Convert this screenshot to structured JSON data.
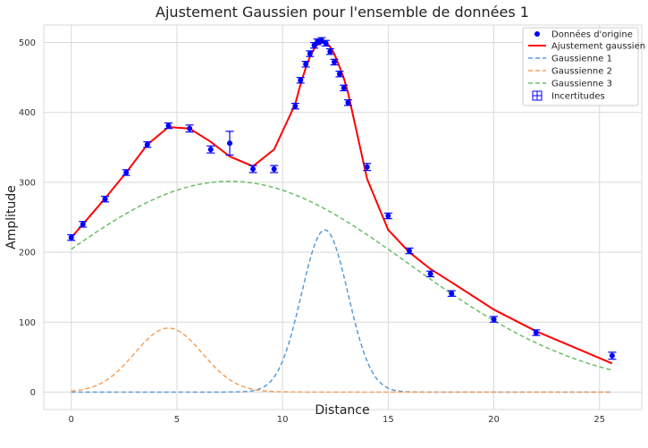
{
  "chart_data": {
    "type": "scatter",
    "title": "Ajustement Gaussien pour l'ensemble de données 1",
    "xlabel": "Distance",
    "ylabel": "Amplitude",
    "xlim": [
      -1.3,
      27
    ],
    "ylim": [
      -25,
      525
    ],
    "xticks": [
      0,
      5,
      10,
      15,
      20,
      25
    ],
    "yticks": [
      0,
      100,
      200,
      300,
      400,
      500
    ],
    "grid": true,
    "legend_position": "top-right",
    "colors": {
      "data": "#0000ff",
      "fit": "#ff0000",
      "gauss1": "#5b9bd5",
      "gauss2": "#f5a05a",
      "gauss3": "#6abf69",
      "grid": "#d9d9d9"
    },
    "legend": [
      {
        "label": "Données d'origine",
        "kind": "point"
      },
      {
        "label": "Ajustement gaussien",
        "kind": "solid"
      },
      {
        "label": "Gaussienne 1",
        "kind": "dash1"
      },
      {
        "label": "Gaussienne 2",
        "kind": "dash2"
      },
      {
        "label": "Gaussienne 3",
        "kind": "dash3"
      },
      {
        "label": "Incertitudes",
        "kind": "errbox"
      }
    ],
    "data_points": [
      {
        "x": 0,
        "y": 221,
        "err": 4
      },
      {
        "x": 0.55,
        "y": 240,
        "err": 4
      },
      {
        "x": 1.6,
        "y": 276,
        "err": 4
      },
      {
        "x": 2.6,
        "y": 314,
        "err": 4
      },
      {
        "x": 3.6,
        "y": 354,
        "err": 4
      },
      {
        "x": 4.6,
        "y": 381,
        "err": 4
      },
      {
        "x": 5.6,
        "y": 377,
        "err": 5
      },
      {
        "x": 6.6,
        "y": 347,
        "err": 5
      },
      {
        "x": 7.5,
        "y": 356,
        "err": 17
      },
      {
        "x": 8.6,
        "y": 319,
        "err": 5
      },
      {
        "x": 9.6,
        "y": 319,
        "err": 5
      },
      {
        "x": 10.6,
        "y": 409,
        "err": 4
      },
      {
        "x": 10.85,
        "y": 446,
        "err": 4
      },
      {
        "x": 11.1,
        "y": 469,
        "err": 4
      },
      {
        "x": 11.3,
        "y": 484,
        "err": 4
      },
      {
        "x": 11.5,
        "y": 496,
        "err": 4
      },
      {
        "x": 11.65,
        "y": 501,
        "err": 4
      },
      {
        "x": 11.85,
        "y": 503,
        "err": 4
      },
      {
        "x": 12.05,
        "y": 499,
        "err": 4
      },
      {
        "x": 12.25,
        "y": 487,
        "err": 4
      },
      {
        "x": 12.45,
        "y": 472,
        "err": 4
      },
      {
        "x": 12.7,
        "y": 455,
        "err": 4
      },
      {
        "x": 12.9,
        "y": 435,
        "err": 4
      },
      {
        "x": 13.1,
        "y": 414,
        "err": 4
      },
      {
        "x": 14,
        "y": 322,
        "err": 5
      },
      {
        "x": 15,
        "y": 252,
        "err": 4
      },
      {
        "x": 16,
        "y": 202,
        "err": 4
      },
      {
        "x": 17,
        "y": 169,
        "err": 4
      },
      {
        "x": 18,
        "y": 141,
        "err": 4
      },
      {
        "x": 20,
        "y": 104,
        "err": 4
      },
      {
        "x": 22,
        "y": 85,
        "err": 4
      },
      {
        "x": 25.6,
        "y": 52,
        "err": 5
      }
    ],
    "fit_curve": {
      "x": [
        0,
        0.55,
        1.6,
        2.6,
        3.6,
        4.6,
        5.6,
        6.6,
        7.5,
        8.6,
        9.6,
        10.6,
        10.85,
        11.1,
        11.3,
        11.5,
        11.65,
        11.85,
        12.05,
        12.25,
        12.45,
        12.7,
        12.9,
        13.1,
        14,
        15,
        16,
        17,
        18,
        20,
        22,
        25.6
      ],
      "y": [
        221,
        240,
        277,
        314,
        354,
        379,
        377,
        358,
        337,
        323,
        347,
        412,
        440,
        464,
        480,
        491,
        497,
        500,
        500,
        494,
        484,
        465,
        449,
        428,
        305,
        232,
        200,
        176,
        157,
        118,
        87,
        41
      ]
    },
    "series": [
      {
        "name": "Gaussienne 1",
        "amplitude": 232,
        "center": 12.0,
        "sigma": 1.1
      },
      {
        "name": "Gaussienne 2",
        "amplitude": 91.5,
        "center": 4.6,
        "sigma": 1.6
      },
      {
        "name": "Gaussienne 3",
        "amplitude": 301.5,
        "center": 7.5,
        "sigma": 8.5
      }
    ]
  }
}
